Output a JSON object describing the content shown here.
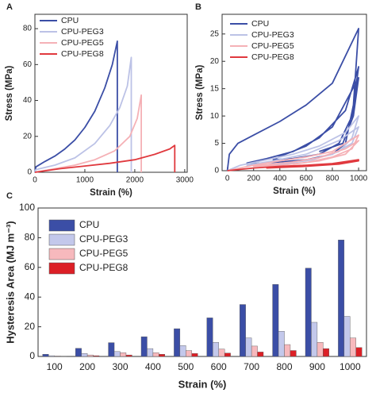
{
  "chart_data": [
    {
      "type": "line",
      "panel_label": "A",
      "x_label": "Strain (%)",
      "y_label": "Stress (MPa)",
      "xlim": [
        0,
        3050
      ],
      "xticks": [
        0,
        1000,
        2000,
        3000
      ],
      "ylim": [
        0,
        88
      ],
      "yticks": [
        0,
        20,
        40,
        60,
        80
      ],
      "series": [
        {
          "name": "CPU",
          "color": "#3b4ea6",
          "x": [
            0,
            20,
            200,
            400,
            600,
            800,
            1000,
            1200,
            1400,
            1550,
            1650,
            1650
          ],
          "values": [
            0,
            3,
            6,
            9,
            13,
            18,
            25,
            34,
            47,
            60,
            73,
            0
          ]
        },
        {
          "name": "CPU-PEG3",
          "color": "#bcc2e6",
          "x": [
            0,
            20,
            400,
            800,
            1200,
            1500,
            1700,
            1850,
            1930,
            1930
          ],
          "values": [
            0,
            1.5,
            4,
            8,
            16,
            26,
            36,
            48,
            64,
            0
          ]
        },
        {
          "name": "CPU-PEG5",
          "color": "#f5b1b6",
          "x": [
            0,
            400,
            800,
            1200,
            1600,
            1900,
            2050,
            2130,
            2130
          ],
          "values": [
            0,
            2,
            4,
            7,
            12,
            20,
            30,
            43,
            0
          ]
        },
        {
          "name": "CPU-PEG8",
          "color": "#e0393e",
          "x": [
            0,
            500,
            1000,
            1500,
            2000,
            2400,
            2700,
            2800,
            2800
          ],
          "values": [
            0,
            2,
            3.5,
            5,
            7,
            10,
            13,
            15,
            0
          ]
        }
      ]
    },
    {
      "type": "line",
      "panel_label": "B",
      "x_label": "Strain (%)",
      "y_label": "Stress (MPa)",
      "xlim": [
        -40,
        1060
      ],
      "xticks": [
        0,
        200,
        400,
        600,
        800,
        1000
      ],
      "ylim": [
        0,
        28.6
      ],
      "yticks": [
        0,
        5,
        10,
        15,
        20,
        25
      ],
      "series": [
        {
          "name": "CPU",
          "color": "#3b4ea6",
          "x": [
            0,
            15,
            80,
            200,
            400,
            600,
            800,
            1000,
            960,
            900,
            800,
            600,
            400,
            200,
            150,
            300,
            500,
            700,
            900,
            1000,
            950,
            850,
            700,
            500,
            350,
            400,
            600,
            800,
            1000,
            960,
            880,
            700
          ],
          "values": [
            0,
            3,
            5,
            6.5,
            9,
            12,
            16,
            26,
            12,
            5,
            3,
            2,
            1.6,
            1.3,
            1.4,
            2.2,
            3.5,
            6,
            11,
            19,
            10,
            5,
            3,
            2.2,
            2,
            2.6,
            4.5,
            8,
            17,
            10,
            5,
            3.5
          ]
        },
        {
          "name": "CPU-PEG3",
          "color": "#bcc2e6",
          "x": [
            0,
            100,
            300,
            500,
            700,
            900,
            1000,
            950,
            850,
            650,
            450,
            250,
            150,
            350,
            600,
            850,
            1000,
            950,
            800,
            600,
            400
          ],
          "values": [
            0,
            1,
            2,
            3,
            4.5,
            7,
            10,
            6,
            3.5,
            2,
            1.3,
            1,
            1,
            1.8,
            3,
            5.5,
            8,
            5,
            3,
            1.8,
            1.3
          ]
        },
        {
          "name": "CPU-PEG5",
          "color": "#f5b1b6",
          "x": [
            0,
            200,
            400,
            600,
            800,
            1000,
            950,
            800,
            600,
            400,
            200,
            300,
            500,
            700,
            900,
            1000,
            900,
            700,
            500
          ],
          "values": [
            0,
            1,
            1.8,
            2.5,
            3.5,
            6.5,
            4,
            2.5,
            1.5,
            1,
            0.8,
            1.1,
            1.6,
            2.4,
            4,
            5.5,
            3,
            1.8,
            1.2
          ]
        },
        {
          "name": "CPU-PEG8",
          "color": "#e0393e",
          "x": [
            0,
            200,
            400,
            600,
            800,
            1000,
            900,
            700,
            500,
            300,
            400,
            600,
            800,
            1000,
            850,
            600,
            400
          ],
          "values": [
            0,
            0.5,
            0.8,
            1,
            1.3,
            2,
            1.4,
            1,
            0.7,
            0.5,
            0.6,
            0.9,
            1.2,
            1.8,
            1.2,
            0.8,
            0.6
          ]
        }
      ]
    },
    {
      "type": "bar",
      "panel_label": "C",
      "x_label": "Strain (%)",
      "y_label": "Hysteresis Area (MJ m⁻³)",
      "categories": [
        "100",
        "200",
        "300",
        "400",
        "500",
        "600",
        "700",
        "800",
        "900",
        "1000"
      ],
      "ylim": [
        0,
        100
      ],
      "yticks": [
        0,
        20,
        40,
        60,
        80,
        100
      ],
      "series": [
        {
          "name": "CPU",
          "color": "#3b4ea6",
          "values": [
            1.5,
            5.5,
            9.3,
            13.3,
            18.7,
            26,
            35,
            48.5,
            59.5,
            78.5
          ]
        },
        {
          "name": "CPU-PEG3",
          "color": "#c3c8eb",
          "values": [
            0.5,
            2,
            3.3,
            5.3,
            7.3,
            9.5,
            12.5,
            17,
            23,
            27
          ]
        },
        {
          "name": "CPU-PEG5",
          "color": "#f7b9bd",
          "values": [
            0.3,
            1,
            2.5,
            2.5,
            4,
            5,
            7,
            8,
            9.5,
            12.5
          ]
        },
        {
          "name": "CPU-PEG8",
          "color": "#dc1f26",
          "values": [
            0.2,
            0.5,
            1,
            1.5,
            2,
            2.3,
            3,
            4,
            5.3,
            6
          ]
        }
      ]
    }
  ]
}
